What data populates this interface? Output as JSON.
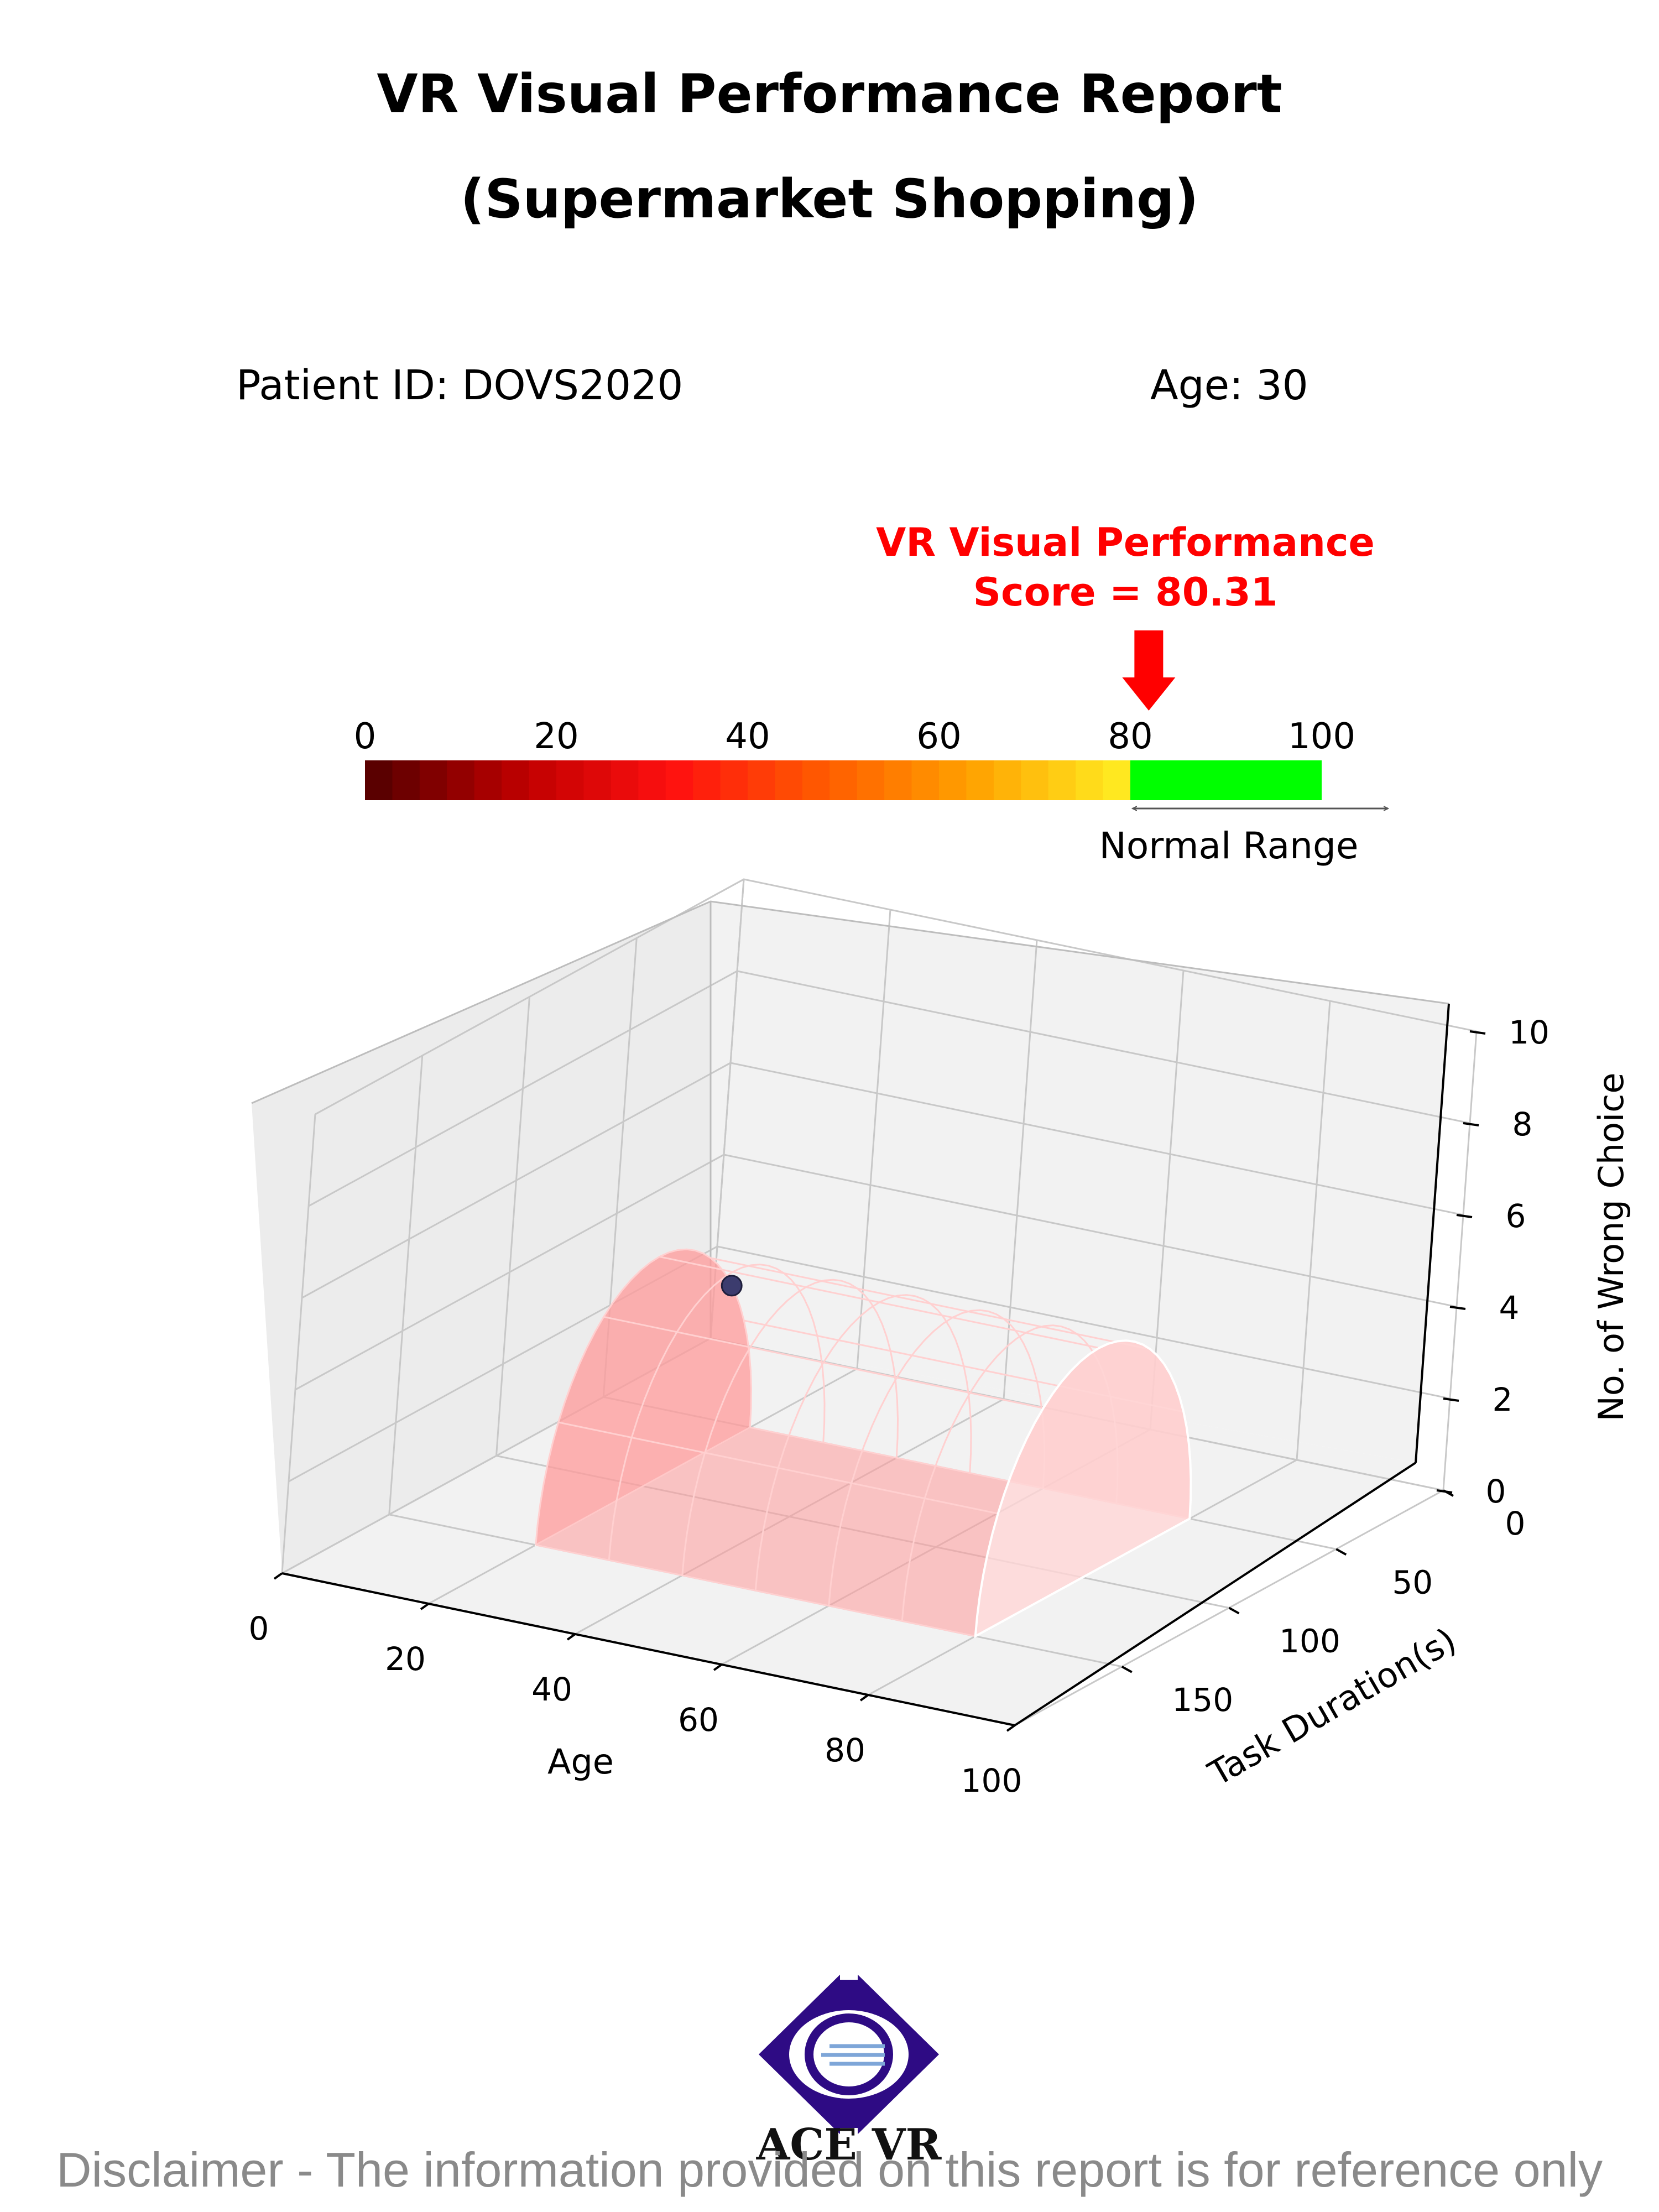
{
  "report": {
    "title_line1": "VR Visual Performance Report",
    "title_line2": "(Supermarket Shopping)",
    "patient_id": "Patient ID: DOVS2020",
    "age": "Age: 30"
  },
  "score": {
    "label_line1": "VR Visual Performance",
    "label_line2": "Score = 80.31",
    "value": 80.31,
    "color": "#ff0000"
  },
  "colorbar": {
    "ticks": [
      "0",
      "20",
      "40",
      "60",
      "80",
      "100"
    ],
    "tick_values": [
      0,
      20,
      40,
      60,
      80,
      100
    ],
    "normal_range_label": "Normal Range",
    "normal_range": [
      80,
      100
    ],
    "normal_color": "#00ff00",
    "gradient_colors": [
      "#5a0000",
      "#c00000",
      "#ff1010",
      "#ff5a00",
      "#ffa000",
      "#ffe820"
    ]
  },
  "chart_data": {
    "type": "scatter",
    "x": [
      30
    ],
    "y": [
      0
    ],
    "z": [
      4.7
    ],
    "xlabel": "Age",
    "ylabel": "Task Duration(s)",
    "zlabel": "No. of Wrong Choice",
    "xticks": [
      "0",
      "20",
      "40",
      "60",
      "80",
      "100"
    ],
    "yticks": [
      "0",
      "50",
      "100",
      "150"
    ],
    "zticks": [
      "0",
      "2",
      "4",
      "6",
      "8",
      "10"
    ],
    "xlim": [
      0,
      100
    ],
    "ylim": [
      0,
      200
    ],
    "zlim": [
      0,
      10
    ],
    "grid": true,
    "point_color": "#3c3c6e",
    "normal_region": {
      "shape": "half-cylinder",
      "x_range": [
        20,
        80
      ],
      "y_center": 100,
      "y_radius": 50,
      "z_max": 5,
      "color": "#ff9a9a"
    }
  },
  "logo": {
    "text": "ACE VR",
    "primary_color": "#2e0b84"
  },
  "footer": {
    "disclaimer": "Disclaimer - The information provided on this report is for reference only"
  }
}
